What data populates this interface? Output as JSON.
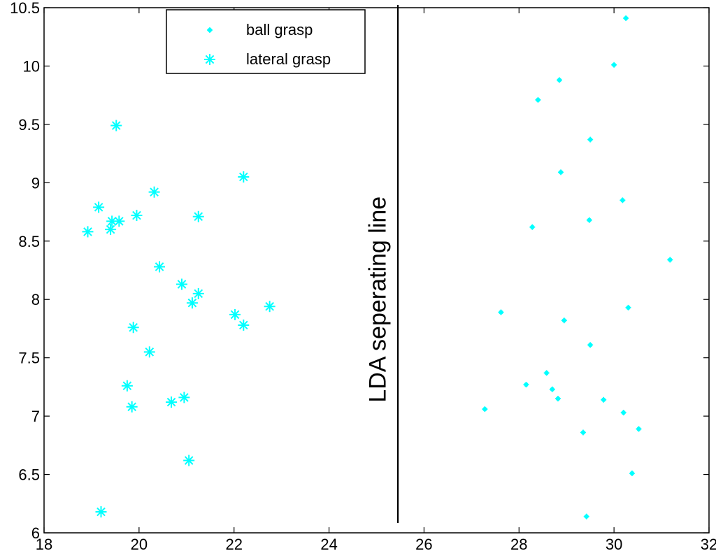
{
  "chart_data": {
    "type": "scatter",
    "xlim": [
      18,
      32
    ],
    "ylim": [
      6,
      10.5
    ],
    "xticks": [
      "18",
      "20",
      "22",
      "24",
      "26",
      "28",
      "30",
      "32"
    ],
    "yticks": [
      "6",
      "6.5",
      "7",
      "7.5",
      "8",
      "8.5",
      "9",
      "9.5",
      "10",
      "10.5"
    ],
    "grid": false,
    "legend_position": "top-left",
    "marker_color": "#00ffff",
    "series": [
      {
        "name": "ball grasp",
        "marker": "point",
        "points": [
          [
            30.25,
            10.41
          ],
          [
            30.0,
            10.01
          ],
          [
            28.85,
            9.88
          ],
          [
            28.4,
            9.71
          ],
          [
            29.5,
            9.37
          ],
          [
            28.88,
            9.09
          ],
          [
            30.18,
            8.85
          ],
          [
            28.28,
            8.62
          ],
          [
            29.48,
            8.68
          ],
          [
            31.18,
            8.34
          ],
          [
            27.62,
            7.89
          ],
          [
            28.95,
            7.82
          ],
          [
            30.3,
            7.93
          ],
          [
            29.5,
            7.61
          ],
          [
            28.58,
            7.37
          ],
          [
            28.15,
            7.27
          ],
          [
            28.7,
            7.23
          ],
          [
            28.82,
            7.15
          ],
          [
            29.78,
            7.14
          ],
          [
            27.28,
            7.06
          ],
          [
            30.2,
            7.03
          ],
          [
            29.35,
            6.86
          ],
          [
            30.52,
            6.89
          ],
          [
            30.38,
            6.51
          ],
          [
            29.42,
            6.14
          ]
        ]
      },
      {
        "name": "lateral grasp",
        "marker": "asterisk",
        "points": [
          [
            19.52,
            9.49
          ],
          [
            22.2,
            9.05
          ],
          [
            20.32,
            8.92
          ],
          [
            19.15,
            8.79
          ],
          [
            19.95,
            8.72
          ],
          [
            21.25,
            8.71
          ],
          [
            19.43,
            8.67
          ],
          [
            19.58,
            8.67
          ],
          [
            19.4,
            8.6
          ],
          [
            18.92,
            8.58
          ],
          [
            20.43,
            8.28
          ],
          [
            20.9,
            8.13
          ],
          [
            21.25,
            8.05
          ],
          [
            21.12,
            7.97
          ],
          [
            22.75,
            7.94
          ],
          [
            22.02,
            7.87
          ],
          [
            22.2,
            7.78
          ],
          [
            19.88,
            7.76
          ],
          [
            20.22,
            7.55
          ],
          [
            19.75,
            7.26
          ],
          [
            20.95,
            7.16
          ],
          [
            20.68,
            7.12
          ],
          [
            19.85,
            7.08
          ],
          [
            21.05,
            6.62
          ],
          [
            19.2,
            6.18
          ]
        ]
      }
    ],
    "annotations": [
      {
        "text": "LDA seperating line",
        "x": 25.5,
        "y": 8.0
      }
    ],
    "separating_line_x": 25.45
  }
}
